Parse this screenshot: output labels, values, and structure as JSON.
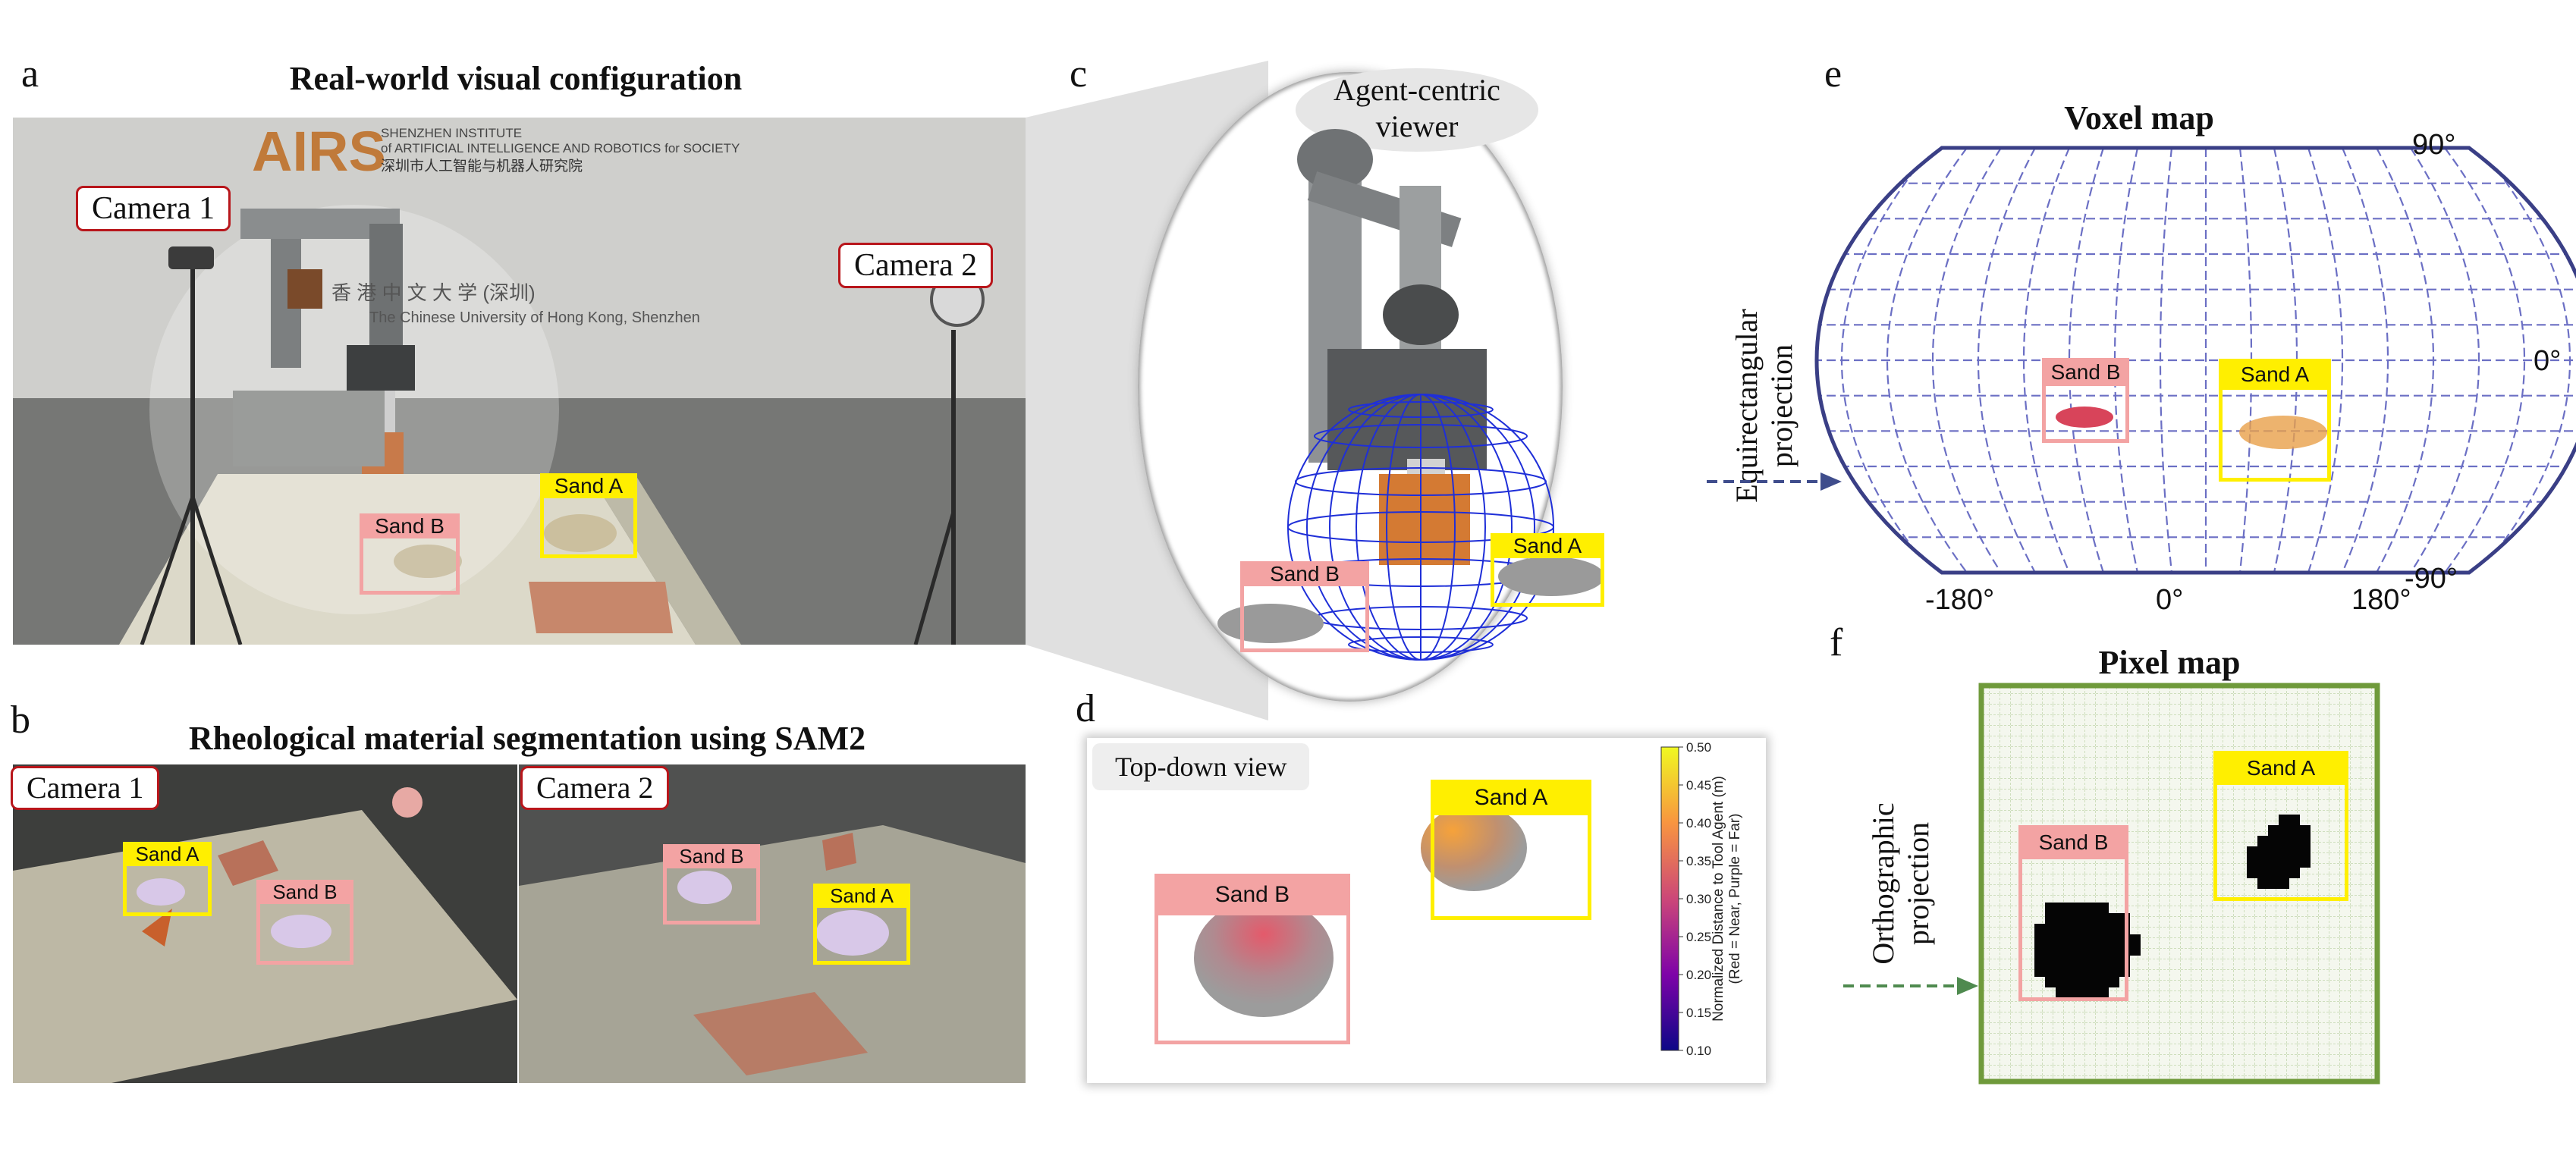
{
  "panels": {
    "a": {
      "letter": "a",
      "title": "Real-world visual configuration",
      "camera1": "Camera 1",
      "camera2": "Camera 2",
      "sand_a": "Sand A",
      "sand_b": "Sand B",
      "signage_en_1": "SHENZHEN INSTITUTE",
      "signage_en_2": "of ARTIFICIAL INTELLIGENCE AND ROBOTICS for SOCIETY",
      "signage_cn": "深圳市人工智能与机器人研究院",
      "logo_text": "AIRS",
      "cuhk_cn": "香 港 中 文 大 学 (深圳)",
      "cuhk_en": "The Chinese University of Hong Kong, Shenzhen"
    },
    "b": {
      "letter": "b",
      "title": "Rheological material segmentation using SAM2",
      "camera1": "Camera 1",
      "camera2": "Camera 2",
      "sand_a": "Sand A",
      "sand_b": "Sand B"
    },
    "c": {
      "letter": "c",
      "viewer_label_1": "Agent-centric",
      "viewer_label_2": "viewer",
      "sand_a": "Sand A",
      "sand_b": "Sand B"
    },
    "d": {
      "letter": "d",
      "view_label": "Top-down view",
      "sand_a": "Sand A",
      "sand_b": "Sand B",
      "colorbar_label_1": "Normalized Distance to Tool Agent (m)",
      "colorbar_label_2": "(Red = Near, Purple = Far)",
      "colorbar_ticks": [
        "0.50",
        "0.45",
        "0.40",
        "0.35",
        "0.30",
        "0.25",
        "0.20",
        "0.15",
        "0.10"
      ]
    },
    "e": {
      "letter": "e",
      "title": "Voxel map",
      "projection_label_1": "Equirectangular",
      "projection_label_2": "projection",
      "sand_a": "Sand A",
      "sand_b": "Sand B",
      "lat_top": "90°",
      "lat_mid": "0°",
      "lat_bottom": "-90°",
      "lon_left": "-180°",
      "lon_mid": "0°",
      "lon_right": "180°"
    },
    "f": {
      "letter": "f",
      "title": "Pixel map",
      "projection_label_1": "Orthographic",
      "projection_label_2": "projection",
      "sand_a": "Sand A",
      "sand_b": "Sand B"
    }
  },
  "colors": {
    "yellow_box": "#ffef00",
    "pink_box": "#f3a3a3",
    "camera_label_border": "#b8161b",
    "voxel_grid": "#6b6fc4",
    "pixel_map_border": "#6f9a3b",
    "arrow_blue": "#3f4d8c",
    "arrow_green": "#4f8a4f"
  }
}
